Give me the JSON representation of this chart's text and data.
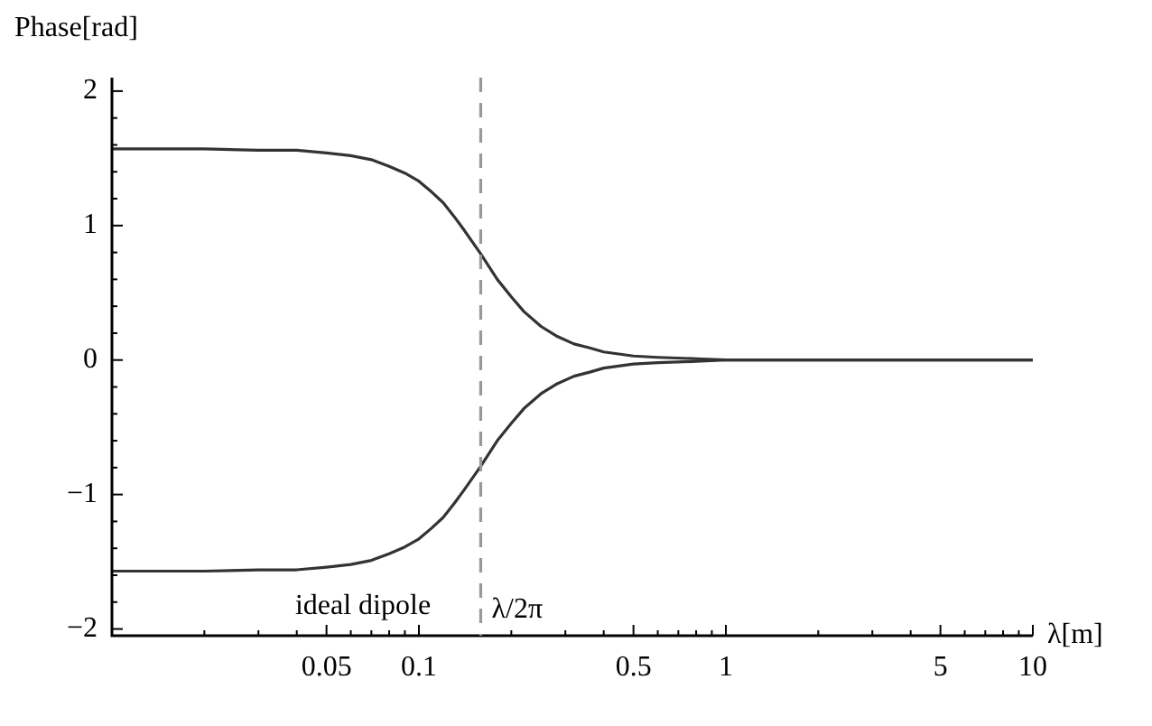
{
  "chart_data": {
    "type": "line",
    "xlabel": "λ[m]",
    "ylabel": "Phase[rad]",
    "x": [
      0.01,
      0.02,
      0.03,
      0.04,
      0.05,
      0.06,
      0.07,
      0.08,
      0.09,
      0.1,
      0.11,
      0.12,
      0.13,
      0.14,
      0.159,
      0.18,
      0.2,
      0.22,
      0.25,
      0.28,
      0.32,
      0.36,
      0.4,
      0.5,
      0.6,
      0.8,
      1,
      2,
      5,
      10
    ],
    "series": [
      {
        "color": "#333333",
        "values": [
          1.57,
          1.57,
          1.56,
          1.56,
          1.54,
          1.52,
          1.49,
          1.44,
          1.39,
          1.33,
          1.25,
          1.17,
          1.07,
          0.97,
          0.79,
          0.6,
          0.47,
          0.36,
          0.25,
          0.18,
          0.12,
          0.09,
          0.06,
          0.03,
          0.02,
          0.01,
          0,
          0,
          0,
          0
        ]
      },
      {
        "color": "#333333",
        "values": [
          -1.57,
          -1.57,
          -1.56,
          -1.56,
          -1.54,
          -1.52,
          -1.49,
          -1.44,
          -1.39,
          -1.33,
          -1.25,
          -1.17,
          -1.07,
          -0.97,
          -0.79,
          -0.6,
          -0.47,
          -0.36,
          -0.25,
          -0.18,
          -0.12,
          -0.09,
          -0.06,
          -0.03,
          -0.02,
          -0.01,
          0,
          0,
          0,
          0
        ]
      }
    ],
    "log": "x",
    "grid": false,
    "legend": false,
    "marker": "none",
    "line_style": "solid",
    "xlim": [
      0.01,
      10
    ],
    "ylim": [
      -2.05,
      2.1
    ],
    "xticks": [
      {
        "value": 0.01,
        "label": null
      },
      {
        "value": 0.02,
        "label": null
      },
      {
        "value": 0.03,
        "label": null
      },
      {
        "value": 0.04,
        "label": null
      },
      0.05,
      {
        "value": 0.06,
        "label": null
      },
      {
        "value": 0.07,
        "label": null
      },
      {
        "value": 0.08,
        "label": null
      },
      {
        "value": 0.09,
        "label": null
      },
      0.1,
      {
        "value": 0.2,
        "label": null
      },
      {
        "value": 0.3,
        "label": null
      },
      {
        "value": 0.4,
        "label": null
      },
      0.5,
      {
        "value": 0.6,
        "label": null
      },
      {
        "value": 0.7,
        "label": null
      },
      {
        "value": 0.8,
        "label": null
      },
      {
        "value": 0.9,
        "label": null
      },
      1,
      {
        "value": 2,
        "label": null
      },
      {
        "value": 3,
        "label": null
      },
      {
        "value": 4,
        "label": null
      },
      5,
      {
        "value": 6,
        "label": null
      },
      {
        "value": 7,
        "label": null
      },
      {
        "value": 8,
        "label": null
      },
      {
        "value": 9,
        "label": null
      },
      10
    ],
    "yticks": [
      {
        "value": -2,
        "label": "−2"
      },
      {
        "value": -1.8,
        "label": null
      },
      {
        "value": -1.6,
        "label": null
      },
      {
        "value": -1.4,
        "label": null
      },
      {
        "value": -1.2,
        "label": null
      },
      {
        "value": -1,
        "label": "−1"
      },
      {
        "value": -0.8,
        "label": null
      },
      {
        "value": -0.6,
        "label": null
      },
      {
        "value": -0.4,
        "label": null
      },
      {
        "value": -0.2,
        "label": null
      },
      {
        "value": 0,
        "label": "0"
      },
      {
        "value": 0.2,
        "label": null
      },
      {
        "value": 0.4,
        "label": null
      },
      {
        "value": 0.6,
        "label": null
      },
      {
        "value": 0.8,
        "label": null
      },
      1,
      {
        "value": 1.2,
        "label": null
      },
      {
        "value": 1.4,
        "label": null
      },
      {
        "value": 1.6,
        "label": null
      },
      {
        "value": 1.8,
        "label": null
      },
      2
    ],
    "ref_lines": [
      {
        "axis": "x",
        "value": 0.159,
        "label": "λ/2π",
        "color": "#999999",
        "line_style": "dashed"
      }
    ],
    "annotations": [
      "ideal dipole"
    ]
  }
}
